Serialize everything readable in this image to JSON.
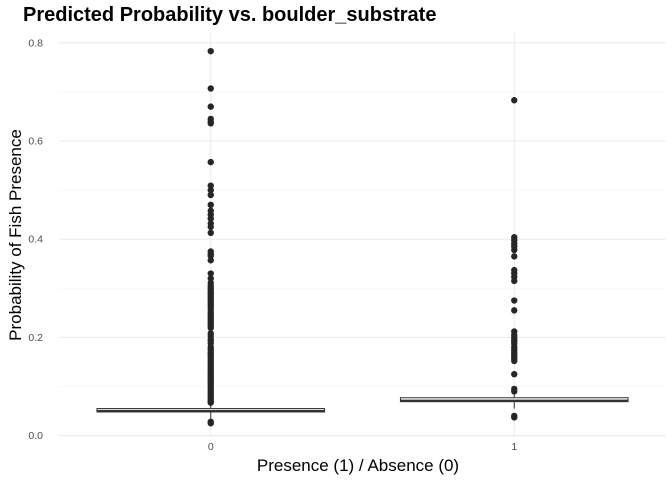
{
  "chart_data": {
    "type": "boxplot",
    "title": "Predicted Probability vs. boulder_substrate",
    "xlabel": "Presence (1) / Absence (0)",
    "ylabel": "Probability of Fish Presence",
    "categories": [
      "0",
      "1"
    ],
    "ylim": [
      -0.005,
      0.82
    ],
    "yticks": [
      0.0,
      0.2,
      0.4,
      0.6,
      0.8
    ],
    "ytick_labels": [
      "0.0",
      "0.2",
      "0.4",
      "0.6",
      "0.8"
    ],
    "grid": true,
    "colors": {
      "point": "#262626",
      "box": "#333333",
      "grid_major": "#ebebeb",
      "grid_minor": "#f5f5f5"
    },
    "boxes": [
      {
        "category": "0",
        "q1": 0.048,
        "median": 0.05,
        "q3": 0.055,
        "whisker_low": 0.03,
        "whisker_high": 0.066
      },
      {
        "category": "1",
        "q1": 0.069,
        "median": 0.071,
        "q3": 0.077,
        "whisker_low": 0.055,
        "whisker_high": 0.085
      }
    ],
    "outliers": [
      {
        "category": "0",
        "values": [
          0.783,
          0.707,
          0.67,
          0.645,
          0.64,
          0.636,
          0.557,
          0.509,
          0.5,
          0.49,
          0.47,
          0.458,
          0.45,
          0.442,
          0.432,
          0.425,
          0.413,
          0.375,
          0.37,
          0.366,
          0.357,
          0.33,
          0.32,
          0.311,
          0.305,
          0.3,
          0.296,
          0.291,
          0.287,
          0.282,
          0.278,
          0.273,
          0.268,
          0.264,
          0.26,
          0.255,
          0.25,
          0.246,
          0.242,
          0.237,
          0.232,
          0.228,
          0.224,
          0.219,
          0.208,
          0.203,
          0.197,
          0.193,
          0.188,
          0.18,
          0.175,
          0.17,
          0.166,
          0.162,
          0.158,
          0.154,
          0.15,
          0.146,
          0.142,
          0.138,
          0.134,
          0.13,
          0.126,
          0.122,
          0.118,
          0.114,
          0.11,
          0.106,
          0.102,
          0.098,
          0.094,
          0.09,
          0.086,
          0.082,
          0.078,
          0.074,
          0.07,
          0.067,
          0.028,
          0.025
        ]
      },
      {
        "category": "1",
        "values": [
          0.683,
          0.404,
          0.398,
          0.391,
          0.385,
          0.378,
          0.365,
          0.337,
          0.33,
          0.323,
          0.315,
          0.275,
          0.255,
          0.212,
          0.205,
          0.2,
          0.196,
          0.192,
          0.187,
          0.18,
          0.175,
          0.17,
          0.165,
          0.16,
          0.156,
          0.152,
          0.125,
          0.095,
          0.09,
          0.04,
          0.037
        ]
      }
    ]
  }
}
